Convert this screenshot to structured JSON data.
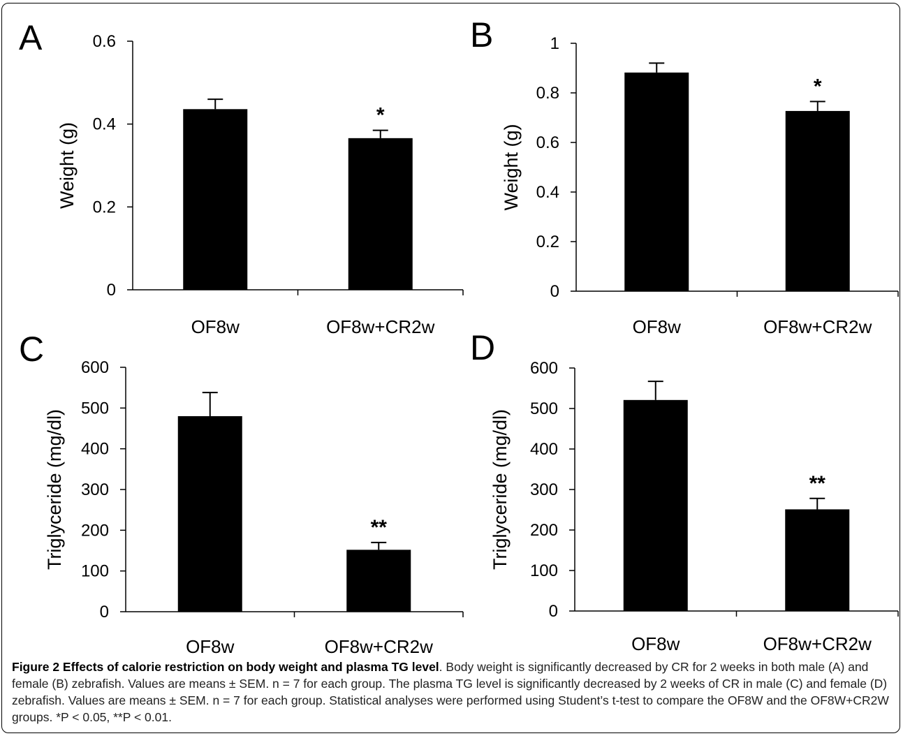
{
  "chart_data": [
    {
      "type": "bar",
      "panel": "A",
      "categories": [
        "OF8w",
        "OF8w+CR2w"
      ],
      "values": [
        0.436,
        0.366
      ],
      "errors": [
        0.024,
        0.019
      ],
      "significance": [
        "",
        "*"
      ],
      "ylabel": "Weight (g)",
      "ylim": [
        0,
        0.6
      ],
      "yticks": [
        "0",
        "0.2",
        "0.4",
        "0.6"
      ],
      "grid": false,
      "bar_color": "#000000"
    },
    {
      "type": "bar",
      "panel": "B",
      "categories": [
        "OF8w",
        "OF8w+CR2w"
      ],
      "values": [
        0.882,
        0.727
      ],
      "errors": [
        0.038,
        0.038
      ],
      "significance": [
        "",
        "*"
      ],
      "ylabel": "Weight (g)",
      "ylim": [
        0,
        1
      ],
      "yticks": [
        "0",
        "0.2",
        "0.4",
        "0.6",
        "0.8",
        "1"
      ],
      "grid": false,
      "bar_color": "#000000"
    },
    {
      "type": "bar",
      "panel": "C",
      "categories": [
        "OF8w",
        "OF8w+CR2w"
      ],
      "values": [
        480,
        152
      ],
      "errors": [
        58,
        18
      ],
      "significance": [
        "",
        "**"
      ],
      "ylabel": "Triglyceride (mg/dl)",
      "ylim": [
        0,
        600
      ],
      "yticks": [
        "0",
        "100",
        "200",
        "300",
        "400",
        "500",
        "600"
      ],
      "grid": false,
      "bar_color": "#000000"
    },
    {
      "type": "bar",
      "panel": "D",
      "categories": [
        "OF8w",
        "OF8w+CR2w"
      ],
      "values": [
        521,
        251
      ],
      "errors": [
        46,
        27
      ],
      "significance": [
        "",
        "**"
      ],
      "ylabel": "Triglyceride (mg/dl)",
      "ylim": [
        0,
        600
      ],
      "yticks": [
        "0",
        "100",
        "200",
        "300",
        "400",
        "500",
        "600"
      ],
      "grid": false,
      "bar_color": "#000000"
    }
  ],
  "caption": {
    "title": "Figure 2 Effects of calorie restriction on body weight and plasma TG level",
    "text": ". Body weight is significantly decreased by CR for 2 weeks in both male (A) and female (B) zebrafish. Values are means ± SEM. n = 7 for each group. The plasma TG level is significantly decreased by 2 weeks of CR in male (C) and female (D) zebrafish. Values are means ± SEM. n = 7 for each group. Statistical analyses were performed using Student’s t-test to compare the OF8W and the OF8W+CR2W groups. *P < 0.05, **P < 0.01."
  }
}
